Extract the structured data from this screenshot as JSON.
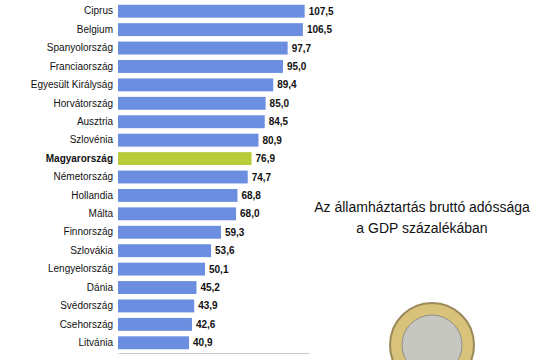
{
  "chart_data": {
    "type": "bar",
    "orientation": "horizontal",
    "title": [
      "Az államháztartás bruttó adóssága",
      "a GDP százalékában"
    ],
    "categories": [
      "Ciprus",
      "Belgium",
      "Spanyolország",
      "Franciaország",
      "Egyesült Királyság",
      "Horvátország",
      "Ausztria",
      "Szlovénia",
      "Magyarország",
      "Németország",
      "Hollandia",
      "Málta",
      "Finnország",
      "Szlovákia",
      "Lengyelország",
      "Dánia",
      "Svédország",
      "Csehország",
      "Litvánia"
    ],
    "values": [
      107.5,
      106.5,
      97.7,
      95.0,
      89.4,
      85.0,
      84.5,
      80.9,
      76.9,
      74.7,
      68.8,
      68.0,
      59.3,
      53.6,
      50.1,
      45.2,
      43.9,
      42.6,
      40.9
    ],
    "value_labels": [
      "107,5",
      "106,5",
      "97,7",
      "95,0",
      "89,4",
      "85,0",
      "84,5",
      "80,9",
      "76,9",
      "74,7",
      "68,8",
      "68,0",
      "59,3",
      "53,6",
      "50,1",
      "45,2",
      "43,9",
      "42,6",
      "40,9"
    ],
    "colors": [
      "#6b8ee0",
      "#6b8ee0",
      "#6b8ee0",
      "#6b8ee0",
      "#6b8ee0",
      "#6b8ee0",
      "#6b8ee0",
      "#6b8ee0",
      "#b8cc3a",
      "#6b8ee0",
      "#6b8ee0",
      "#6b8ee0",
      "#6b8ee0",
      "#6b8ee0",
      "#6b8ee0",
      "#6b8ee0",
      "#6b8ee0",
      "#6b8ee0",
      "#6b8ee0"
    ],
    "xlim": [
      0,
      110
    ],
    "data_labels": true,
    "tick_labels": false,
    "grid": false
  }
}
